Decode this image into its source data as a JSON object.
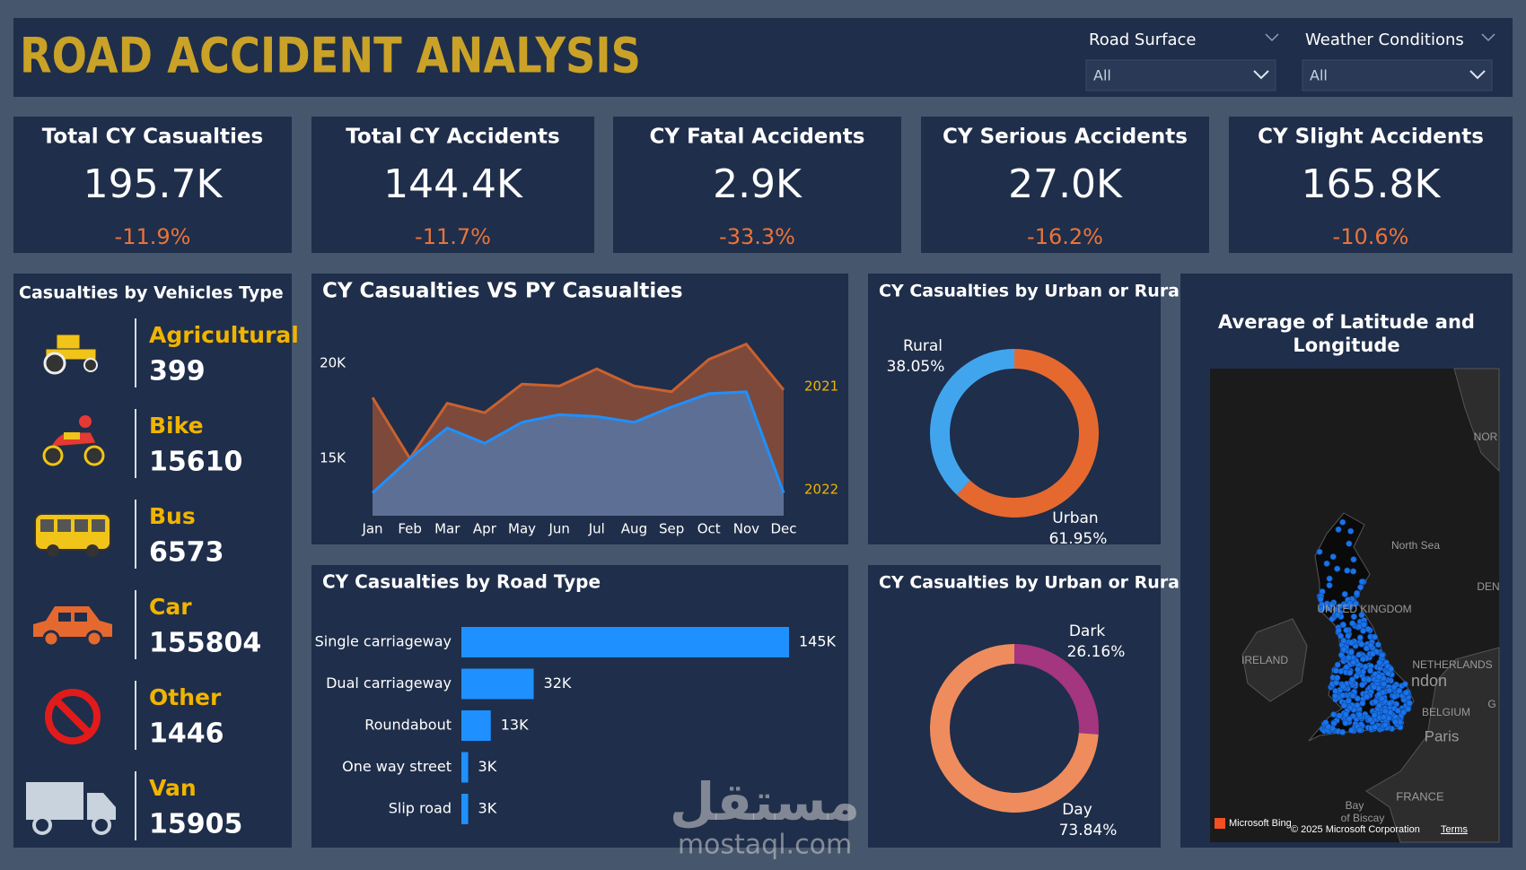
{
  "header": {
    "title": "ROAD ACCIDENT ANALYSIS"
  },
  "filters": [
    {
      "label": "Road Surface",
      "value": "All"
    },
    {
      "label": "Weather Conditions",
      "value": "All"
    }
  ],
  "kpis": [
    {
      "title": "Total CY Casualties",
      "value": "195.7K",
      "change": "-11.9%"
    },
    {
      "title": "Total CY Accidents",
      "value": "144.4K",
      "change": "-11.7%"
    },
    {
      "title": "CY Fatal Accidents",
      "value": "2.9K",
      "change": "-33.3%"
    },
    {
      "title": "CY Serious Accidents",
      "value": "27.0K",
      "change": "-16.2%"
    },
    {
      "title": "CY Slight Accidents",
      "value": "165.8K",
      "change": "-10.6%"
    }
  ],
  "vehicles": {
    "title": "Casualties by Vehicles Type",
    "items": [
      {
        "name": "Agricultural",
        "count": 399
      },
      {
        "name": "Bike",
        "count": 15610
      },
      {
        "name": "Bus",
        "count": 6573
      },
      {
        "name": "Car",
        "count": 155804
      },
      {
        "name": "Other",
        "count": 1446
      },
      {
        "name": "Van",
        "count": 15905
      }
    ]
  },
  "chart_data": [
    {
      "type": "area",
      "title": "CY Casualties VS PY Casualties",
      "categories": [
        "Jan",
        "Feb",
        "Mar",
        "Apr",
        "May",
        "Jun",
        "Jul",
        "Aug",
        "Sep",
        "Oct",
        "Nov",
        "Dec"
      ],
      "series": [
        {
          "name": "2021",
          "color": "#c8612f",
          "values": [
            18200,
            15000,
            17900,
            17400,
            18900,
            18800,
            19700,
            18800,
            18500,
            20200,
            21000,
            18600
          ]
        },
        {
          "name": "2022",
          "color": "#1e90ff",
          "values": [
            13200,
            15000,
            16600,
            15800,
            16900,
            17300,
            17200,
            16900,
            17700,
            18400,
            18500,
            13200
          ]
        }
      ],
      "ylim": [
        12000,
        21500
      ],
      "yticks": [
        {
          "value": 15000,
          "label": "15K"
        },
        {
          "value": 20000,
          "label": "20K"
        }
      ]
    },
    {
      "type": "hbar",
      "title": "CY Casualties by Road Type",
      "categories": [
        "Single carriageway",
        "Dual carriageway",
        "Roundabout",
        "One way street",
        "Slip road"
      ],
      "values": [
        145000,
        32000,
        13000,
        3000,
        3000
      ],
      "value_labels": [
        "145K",
        "32K",
        "13K",
        "3K",
        "3K"
      ],
      "color": "#1e90ff"
    },
    {
      "type": "donut",
      "title": "CY Casualties by Urban or Rural",
      "categories": [
        "Rural",
        "Urban"
      ],
      "values": [
        38.05,
        61.95
      ],
      "value_labels": [
        "38.05%",
        "61.95%"
      ],
      "colors": [
        "#41a5ee",
        "#e5692f"
      ]
    },
    {
      "type": "donut",
      "title": "CY Casualties by Urban or Rural",
      "categories": [
        "Dark",
        "Day"
      ],
      "values": [
        26.16,
        73.84
      ],
      "value_labels": [
        "26.16%",
        "73.84%"
      ],
      "colors": [
        "#a4357f",
        "#ef8c5e"
      ]
    }
  ],
  "map": {
    "title": "Average of Latitude and Longitude",
    "labels": [
      "NOR",
      "North Sea",
      "DEN",
      "UNITED KINGDOM",
      "IRELAND",
      "NETHERLANDS",
      "ndon",
      "BELGIUM",
      "Paris",
      "G",
      "FRANCE",
      "Bay",
      "of Biscay"
    ],
    "attribution": "Microsoft Bing",
    "copyright": "© 2025 Microsoft Corporation",
    "terms": "Terms"
  },
  "watermark": {
    "arabic": "مستقل",
    "latin": "mostaql.com"
  }
}
